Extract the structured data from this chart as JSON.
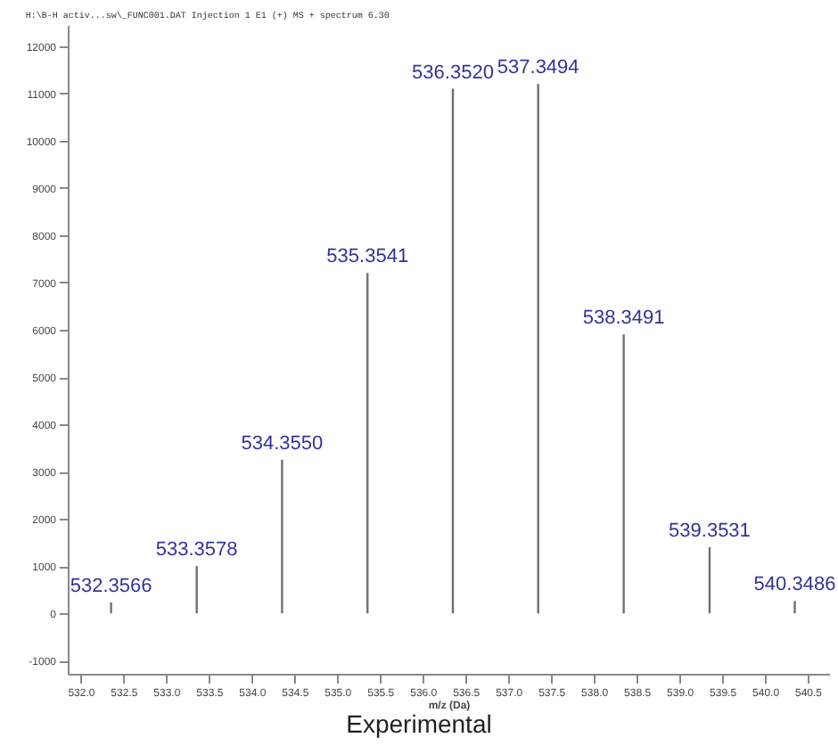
{
  "chart_data": {
    "type": "bar",
    "title": "H:\\B-H activ...sw\\_FUNC001.DAT Injection 1 E1 (+) MS + spectrum 6.30",
    "xlabel": "m/z (Da)",
    "x": [
      532.3566,
      533.3578,
      534.355,
      535.3541,
      536.352,
      537.3494,
      538.3491,
      539.3531,
      540.3486
    ],
    "values": [
      230,
      1000,
      3250,
      7200,
      11100,
      11200,
      5900,
      1400,
      260
    ],
    "color": "#707070",
    "xlim": [
      531.85,
      540.75
    ],
    "xticks": [
      {
        "value": 532,
        "label": "532.0"
      },
      532.5,
      {
        "value": 533,
        "label": "533.0"
      },
      533.5,
      {
        "value": 534,
        "label": "534.0"
      },
      534.5,
      {
        "value": 535,
        "label": "535.0"
      },
      535.5,
      {
        "value": 536,
        "label": "536.0"
      },
      536.5,
      {
        "value": 537,
        "label": "537.0"
      },
      537.5,
      {
        "value": 538,
        "label": "538.0"
      },
      538.5,
      {
        "value": 539,
        "label": "539.0"
      },
      539.5,
      {
        "value": 540,
        "label": "540.0"
      },
      540.5
    ],
    "ylim": [
      -1280,
      12450
    ],
    "yticks": [
      -1000,
      0,
      1000,
      2000,
      3000,
      4000,
      5000,
      6000,
      7000,
      8000,
      9000,
      10000,
      11000,
      12000
    ],
    "annotations": [
      {
        "text": "532.3566",
        "x": 532.3566,
        "y": 230
      },
      {
        "text": "533.3578",
        "x": 533.3578,
        "y": 1000
      },
      {
        "text": "534.3550",
        "x": 534.355,
        "y": 3250
      },
      {
        "text": "535.3541",
        "x": 535.3541,
        "y": 7200
      },
      {
        "text": "536.3520",
        "x": 536.352,
        "y": 11100
      },
      {
        "text": "537.3494",
        "x": 537.3494,
        "y": 11200
      },
      {
        "text": "538.3491",
        "x": 538.3491,
        "y": 5900
      },
      {
        "text": "539.3531",
        "x": 539.3531,
        "y": 1400
      },
      {
        "text": "540.3486",
        "x": 540.3486,
        "y": 260
      },
      "Experimental"
    ],
    "grid": false
  }
}
